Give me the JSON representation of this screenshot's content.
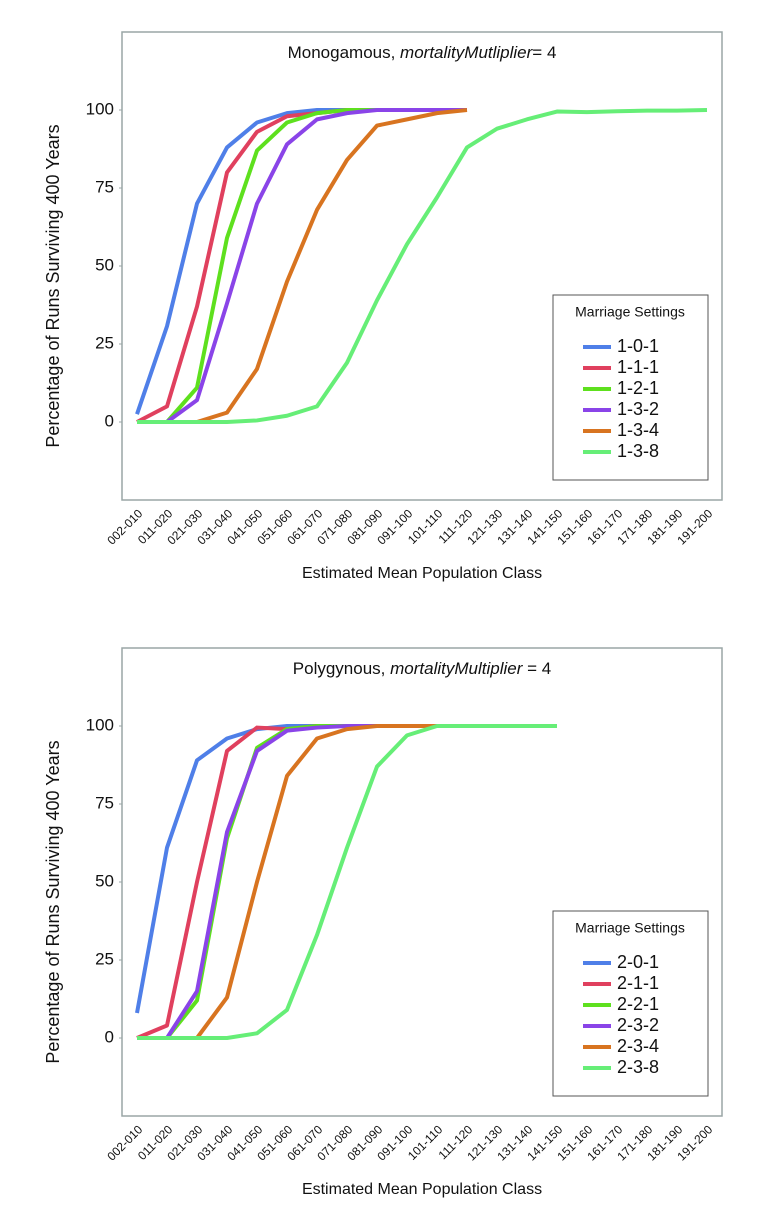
{
  "chart_data": [
    {
      "type": "line",
      "title": [
        "Monogamous, ",
        "mortalityMutliplier",
        "= 4"
      ],
      "x_label": "Estimated Mean Population Class",
      "y_label": "Percentage of Runs Surviving 400 Years",
      "legend_title": "Marriage Settings",
      "categories": [
        "002-010",
        "011-020",
        "021-030",
        "031-040",
        "041-050",
        "051-060",
        "061-070",
        "071-080",
        "081-090",
        "091-100",
        "101-110",
        "111-120",
        "121-130",
        "131-140",
        "141-150",
        "151-160",
        "161-170",
        "171-180",
        "181-190",
        "191-200"
      ],
      "ylim": [
        -25,
        125
      ],
      "yticks": [
        0,
        25,
        50,
        75,
        100
      ],
      "series": [
        {
          "name": "1-0-1",
          "color": "#4f7fe8",
          "values": [
            2.5,
            30.7,
            70,
            88,
            96,
            99,
            100,
            100,
            100,
            100,
            100,
            100,
            null,
            null,
            null,
            null,
            null,
            null,
            null,
            null
          ]
        },
        {
          "name": "1-1-1",
          "color": "#e0405e",
          "values": [
            0,
            5,
            37,
            80,
            93,
            98,
            99,
            100,
            100,
            100,
            100,
            100,
            null,
            null,
            null,
            null,
            null,
            null,
            null,
            null
          ]
        },
        {
          "name": "1-2-1",
          "color": "#5ee01e",
          "values": [
            0,
            0,
            11,
            59,
            87,
            96,
            99,
            100,
            100,
            100,
            100,
            100,
            null,
            null,
            null,
            null,
            null,
            null,
            null,
            null
          ]
        },
        {
          "name": "1-3-2",
          "color": "#8a44e8",
          "values": [
            null,
            0,
            7,
            38,
            70,
            89,
            97,
            99,
            100,
            100,
            100,
            100,
            null,
            null,
            null,
            null,
            null,
            null,
            null,
            null
          ]
        },
        {
          "name": "1-3-4",
          "color": "#d87420",
          "values": [
            null,
            null,
            0,
            3,
            17,
            45,
            68,
            84,
            95,
            97,
            99,
            100,
            null,
            null,
            null,
            null,
            null,
            null,
            null,
            null
          ]
        },
        {
          "name": "1-3-8",
          "color": "#66ee77",
          "values": [
            0,
            0,
            0,
            0,
            0.5,
            2,
            5,
            19,
            39,
            57,
            72,
            88,
            94,
            97,
            99.5,
            99.3,
            99.6,
            99.8,
            99.8,
            100
          ]
        }
      ]
    },
    {
      "type": "line",
      "title": [
        "Polygynous, ",
        "mortalityMultiplier",
        " = 4"
      ],
      "x_label": "Estimated Mean Population Class",
      "y_label": "Percentage of Runs Surviving 400 Years",
      "legend_title": "Marriage Settings",
      "categories": [
        "002-010",
        "011-020",
        "021-030",
        "031-040",
        "041-050",
        "051-060",
        "061-070",
        "071-080",
        "081-090",
        "091-100",
        "101-110",
        "111-120",
        "121-130",
        "131-140",
        "141-150",
        "151-160",
        "161-170",
        "171-180",
        "181-190",
        "191-200"
      ],
      "ylim": [
        -25,
        125
      ],
      "yticks": [
        0,
        25,
        50,
        75,
        100
      ],
      "series": [
        {
          "name": "2-0-1",
          "color": "#4f7fe8",
          "values": [
            8,
            61,
            89,
            96,
            99,
            100,
            100,
            100,
            100,
            100,
            100,
            100,
            100,
            100,
            100,
            null,
            null,
            null,
            null,
            null
          ]
        },
        {
          "name": "2-1-1",
          "color": "#e0405e",
          "values": [
            0,
            4,
            50,
            92,
            99.5,
            99,
            100,
            100,
            100,
            100,
            100,
            100,
            100,
            100,
            100,
            null,
            null,
            null,
            null,
            null
          ]
        },
        {
          "name": "2-2-1",
          "color": "#5ee01e",
          "values": [
            null,
            0,
            12,
            64,
            93,
            99,
            100,
            100,
            100,
            100,
            100,
            100,
            100,
            100,
            100,
            null,
            null,
            null,
            null,
            null
          ]
        },
        {
          "name": "2-3-2",
          "color": "#8a44e8",
          "values": [
            null,
            0,
            15,
            66,
            92,
            98.5,
            99.5,
            100,
            100,
            100,
            100,
            100,
            100,
            100,
            100,
            null,
            null,
            null,
            null,
            null
          ]
        },
        {
          "name": "2-3-4",
          "color": "#d87420",
          "values": [
            null,
            null,
            0,
            13,
            50,
            84,
            96,
            99,
            100,
            100,
            100,
            100,
            100,
            100,
            100,
            null,
            null,
            null,
            null,
            null
          ]
        },
        {
          "name": "2-3-8",
          "color": "#66ee77",
          "values": [
            0,
            0,
            0,
            0,
            1.5,
            9,
            33,
            61,
            87,
            97,
            100,
            100,
            100,
            100,
            100,
            null,
            null,
            null,
            null,
            null
          ]
        }
      ]
    }
  ]
}
